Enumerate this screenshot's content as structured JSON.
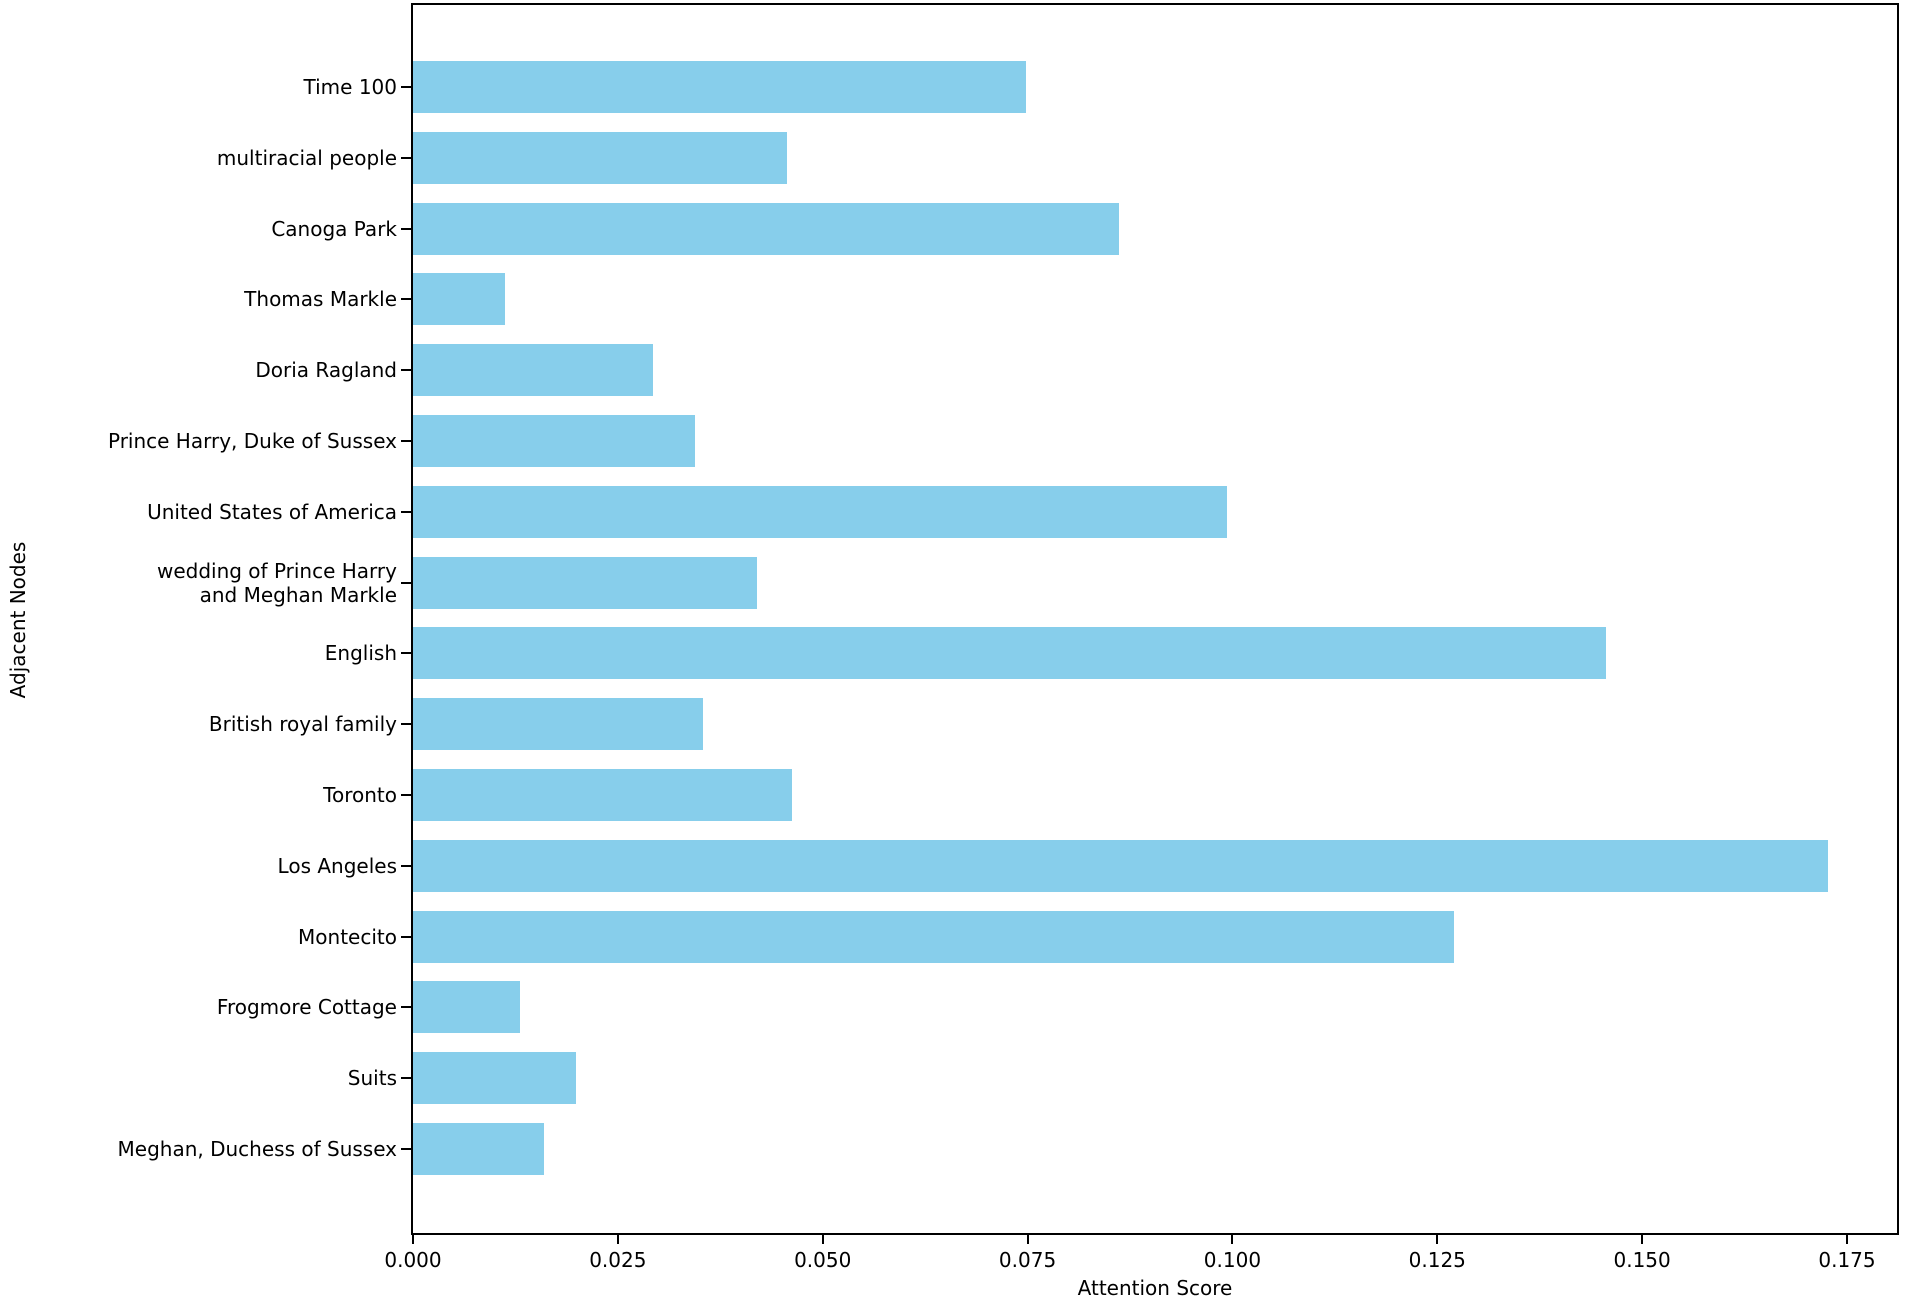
{
  "figure": {
    "background": "#ffffff",
    "bar_color": "#87CEEB",
    "spine_color": "#000000",
    "text_color": "#000000"
  },
  "chart_data": {
    "type": "bar",
    "orientation": "horizontal",
    "title": "",
    "xlabel": "Attention Score",
    "ylabel": "Adjacent Nodes",
    "grid": false,
    "legend": false,
    "categories": [
      "Time 100",
      "multiracial people",
      "Canoga Park",
      "Thomas Markle",
      "Doria Ragland",
      "Prince Harry, Duke of Sussex",
      "United States of America",
      "wedding of Prince Harry\nand Meghan Markle",
      "English",
      "British royal family",
      "Toronto",
      "Los Angeles",
      "Montecito",
      "Frogmore Cottage",
      "Suits",
      "Meghan, Duchess of Sussex"
    ],
    "values": [
      0.0748,
      0.0456,
      0.0861,
      0.0112,
      0.0293,
      0.0344,
      0.0993,
      0.042,
      0.1456,
      0.0354,
      0.0463,
      0.1727,
      0.127,
      0.013,
      0.0199,
      0.016
    ],
    "x_ticks": [
      0.0,
      0.025,
      0.05,
      0.075,
      0.1,
      0.125,
      0.15,
      0.175
    ],
    "x_tick_labels": [
      "0.000",
      "0.025",
      "0.050",
      "0.075",
      "0.100",
      "0.125",
      "0.150",
      "0.175"
    ],
    "xlim": [
      0,
      0.1811
    ]
  }
}
